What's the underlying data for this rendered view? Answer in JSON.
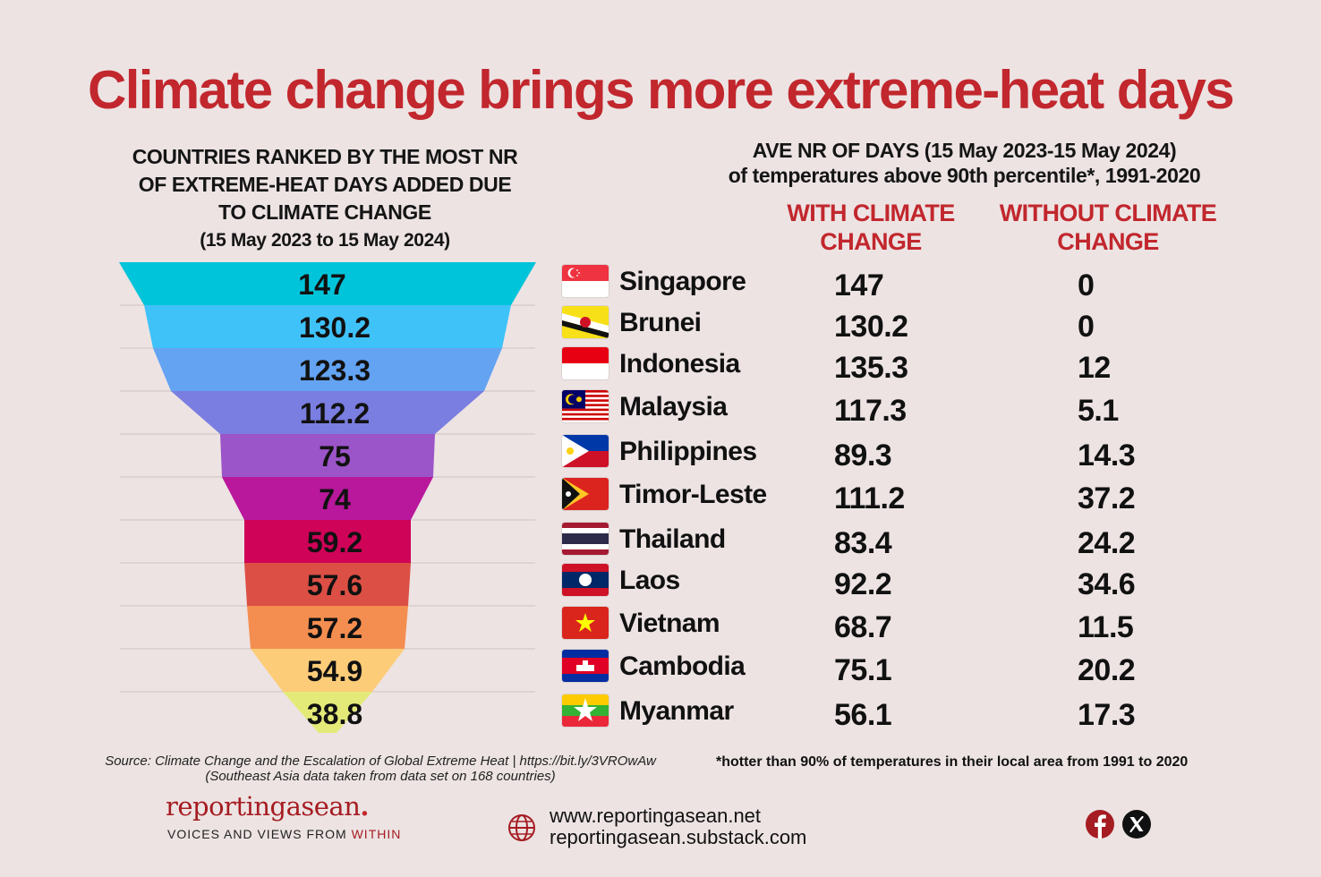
{
  "title": "Climate change brings more extreme-heat days",
  "left_heading": {
    "lines": [
      "COUNTRIES RANKED BY THE MOST NR",
      "OF EXTREME-HEAT DAYS ADDED DUE",
      "TO CLIMATE CHANGE"
    ],
    "date_range": "(15 May 2023 to 15 May 2024)"
  },
  "right_heading": {
    "line1": "AVE NR OF DAYS (15 May 2023-15 May 2024)",
    "line2": "of temperatures above 90th percentile*, 1991-2020"
  },
  "columns": {
    "with_line1": "WITH CLIMATE",
    "with_line2": "CHANGE",
    "without_line1": "WITHOUT CLIMATE",
    "without_line2": "CHANGE"
  },
  "chart_data": {
    "type": "table",
    "funnel_values": [
      147,
      130.2,
      123.3,
      112.2,
      75,
      74,
      59.2,
      57.6,
      57.2,
      54.9,
      38.8
    ],
    "funnel_value_labels": [
      "147",
      "130.2",
      "123.3",
      "112.2",
      "75",
      "74",
      "59.2",
      "57.6",
      "57.2",
      "54.9",
      "38.8"
    ],
    "funnel_colors": [
      "#00c4d9",
      "#3fc2f8",
      "#63a3f2",
      "#7a7ee0",
      "#9b55c8",
      "#b9189c",
      "#cf0358",
      "#dc4f44",
      "#f48e50",
      "#fdcc79",
      "#e4ea78"
    ],
    "rows": [
      {
        "country": "Singapore",
        "flag": "singapore-flag",
        "with": "147",
        "without": "0"
      },
      {
        "country": "Brunei",
        "flag": "brunei-flag",
        "with": "130.2",
        "without": "0"
      },
      {
        "country": "Indonesia",
        "flag": "indonesia-flag",
        "with": "135.3",
        "without": "12"
      },
      {
        "country": "Malaysia",
        "flag": "malaysia-flag",
        "with": "117.3",
        "without": "5.1"
      },
      {
        "country": "Philippines",
        "flag": "philippines-flag",
        "with": "89.3",
        "without": "14.3"
      },
      {
        "country": "Timor-Leste",
        "flag": "timor-leste-flag",
        "with": "111.2",
        "without": "37.2"
      },
      {
        "country": "Thailand",
        "flag": "thailand-flag",
        "with": "83.4",
        "without": "24.2"
      },
      {
        "country": "Laos",
        "flag": "laos-flag",
        "with": "92.2",
        "without": "34.6"
      },
      {
        "country": "Vietnam",
        "flag": "vietnam-flag",
        "with": "68.7",
        "without": "11.5"
      },
      {
        "country": "Cambodia",
        "flag": "cambodia-flag",
        "with": "75.1",
        "without": "20.2"
      },
      {
        "country": "Myanmar",
        "flag": "myanmar-flag",
        "with": "56.1",
        "without": "17.3"
      }
    ]
  },
  "source": {
    "line1": "Source: Climate Change and the Escalation of Global Extreme Heat | https://bit.ly/3VROwAw",
    "line2": "(Southeast Asia data taken from data set on 168 countries)"
  },
  "footnote": "*hotter than 90% of temperatures in their local area from 1991 to 2020",
  "footer": {
    "brand": "reportingasean",
    "tagline_a": "VOICES AND VIEWS FROM",
    "tagline_b": "WITHIN",
    "website": "www.reportingasean.net",
    "substack": "reportingasean.substack.com",
    "icons": [
      "globe-icon",
      "facebook-icon",
      "x-icon"
    ]
  }
}
